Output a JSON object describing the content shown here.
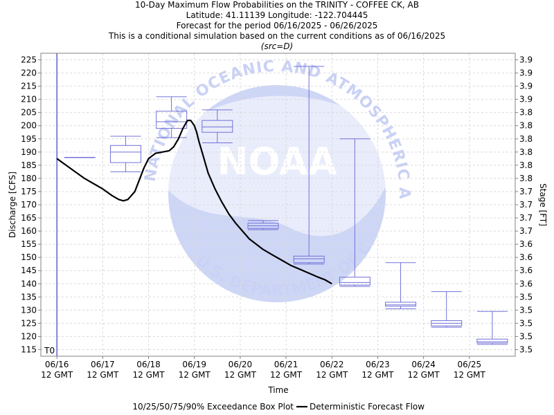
{
  "header": {
    "title": "10-Day Maximum Flow Probabilities on the TRINITY - COFFEE CK, AB",
    "location": "Latitude: 41.11139 Longitude: -122.704445",
    "period": "Forecast for the period 06/16/2025 - 06/26/2025",
    "note": "This is a conditional simulation based on the current conditions as of 06/16/2025",
    "source": "(src=D)"
  },
  "watermark": {
    "text": "NOAA",
    "ring_top": "NATIONAL OCEANIC AND ATMOSPHERIC ADMINISTRATION",
    "ring_bottom": "U.S. DEPARTMENT OF COMMERCE",
    "color": "#c9d1f5"
  },
  "chart_data": {
    "type": "box+line",
    "xlabel": "Time",
    "ylabel": "Discharge [CFS]",
    "y2label": "Stage [FT]",
    "ylim": [
      112.5,
      227.5
    ],
    "xlim": [
      -0.35,
      10.0
    ],
    "grid": true,
    "y_ticks": [
      115,
      120,
      125,
      130,
      135,
      140,
      145,
      150,
      155,
      160,
      165,
      170,
      175,
      180,
      185,
      190,
      195,
      200,
      205,
      210,
      215,
      220,
      225
    ],
    "y2_ticks": [
      "3.5",
      "3.5",
      "3.5",
      "3.5",
      "3.5",
      "3.6",
      "3.6",
      "3.6",
      "3.6",
      "3.7",
      "3.7",
      "3.7",
      "3.7",
      "3.8",
      "3.8",
      "3.8",
      "3.8",
      "3.8",
      "3.8",
      "3.9",
      "3.9",
      "3.9",
      "3.9"
    ],
    "x_ticks": [
      {
        "x": 0,
        "date": "06/16",
        "time": "12 GMT"
      },
      {
        "x": 1,
        "date": "06/17",
        "time": "12 GMT"
      },
      {
        "x": 2,
        "date": "06/18",
        "time": "12 GMT"
      },
      {
        "x": 3,
        "date": "06/19",
        "time": "12 GMT"
      },
      {
        "x": 4,
        "date": "06/20",
        "time": "12 GMT"
      },
      {
        "x": 5,
        "date": "06/21",
        "time": "12 GMT"
      },
      {
        "x": 6,
        "date": "06/22",
        "time": "12 GMT"
      },
      {
        "x": 7,
        "date": "06/23",
        "time": "12 GMT"
      },
      {
        "x": 8,
        "date": "06/24",
        "time": "12 GMT"
      },
      {
        "x": 9,
        "date": "06/25",
        "time": "12 GMT"
      }
    ],
    "t0": {
      "x": 0,
      "label": "T0"
    },
    "box_series": {
      "name": "10/25/50/75/90% Exceedance Box Plot",
      "color": "#7070d8",
      "boxes": [
        {
          "x": 0.5,
          "p10": 188,
          "p25": 188,
          "p50": 188,
          "p75": 188,
          "p90": 188
        },
        {
          "x": 1.5,
          "p10": 182.5,
          "p25": 186,
          "p50": 190,
          "p75": 192.5,
          "p90": 196
        },
        {
          "x": 2.5,
          "p10": 195.5,
          "p25": 199,
          "p50": 201.5,
          "p75": 205.5,
          "p90": 211
        },
        {
          "x": 3.5,
          "p10": 193.5,
          "p25": 197.5,
          "p50": 199.5,
          "p75": 202,
          "p90": 206
        },
        {
          "x": 4.5,
          "p10": 160.5,
          "p25": 161,
          "p50": 162,
          "p75": 163,
          "p90": 164
        },
        {
          "x": 5.5,
          "p10": 147.5,
          "p25": 148,
          "p50": 149.5,
          "p75": 150.5,
          "p90": 222.5
        },
        {
          "x": 6.5,
          "p10": 139,
          "p25": 139.5,
          "p50": 140.5,
          "p75": 142.5,
          "p90": 195
        },
        {
          "x": 7.5,
          "p10": 130.5,
          "p25": 131.5,
          "p50": 132,
          "p75": 133,
          "p90": 148
        },
        {
          "x": 8.5,
          "p10": 123.5,
          "p25": 124,
          "p50": 125,
          "p75": 126,
          "p90": 137
        },
        {
          "x": 9.5,
          "p10": 117,
          "p25": 117.5,
          "p50": 118,
          "p75": 119,
          "p90": 129.5
        }
      ]
    },
    "line_series": {
      "name": "Deterministic Forecast Flow",
      "color": "#000000",
      "x": [
        0.0,
        0.2,
        0.4,
        0.6,
        0.8,
        1.0,
        1.2,
        1.35,
        1.45,
        1.55,
        1.7,
        1.8,
        1.9,
        2.0,
        2.15,
        2.3,
        2.45,
        2.55,
        2.65,
        2.75,
        2.85,
        2.92,
        3.0,
        3.05,
        3.1,
        3.2,
        3.3,
        3.45,
        3.6,
        3.75,
        3.9,
        4.05,
        4.2,
        4.35,
        4.5,
        4.7,
        4.9,
        5.1,
        5.3,
        5.5,
        5.7,
        5.85,
        6.0
      ],
      "y": [
        187.5,
        185,
        182.5,
        180,
        178,
        176,
        173.5,
        172,
        171.5,
        172,
        175,
        179.5,
        184,
        187.5,
        189.5,
        190,
        190.5,
        192,
        195,
        199,
        202,
        202,
        200,
        197.5,
        194,
        188,
        182,
        176,
        171,
        166.5,
        163,
        160,
        157,
        155,
        153,
        151,
        149,
        147,
        145.5,
        144,
        142.5,
        141.5,
        140
      ]
    },
    "legend": {
      "position": "bottom-center"
    }
  }
}
